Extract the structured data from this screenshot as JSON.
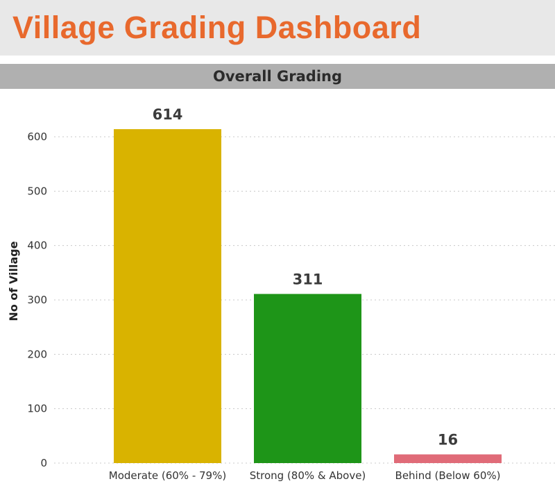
{
  "header": {
    "title": "Village Grading Dashboard"
  },
  "section": {
    "title": "Overall Grading"
  },
  "colors": {
    "title": "#e8692d",
    "moderate": "#d9b300",
    "strong": "#1e9518",
    "behind": "#e06b78"
  },
  "chart_data": {
    "type": "bar",
    "title": "Overall Grading",
    "categories": [
      "Moderate (60% - 79%)",
      "Strong (80% & Above)",
      "Behind (Below 60%)"
    ],
    "values": [
      614,
      311,
      16
    ],
    "bar_colors": [
      "#d9b300",
      "#1e9518",
      "#e06b78"
    ],
    "xlabel": "",
    "ylabel": "No of Village",
    "ylim": [
      0,
      600
    ],
    "yticks": [
      0,
      100,
      200,
      300,
      400,
      500,
      600
    ],
    "grid": true,
    "data_labels": true
  }
}
